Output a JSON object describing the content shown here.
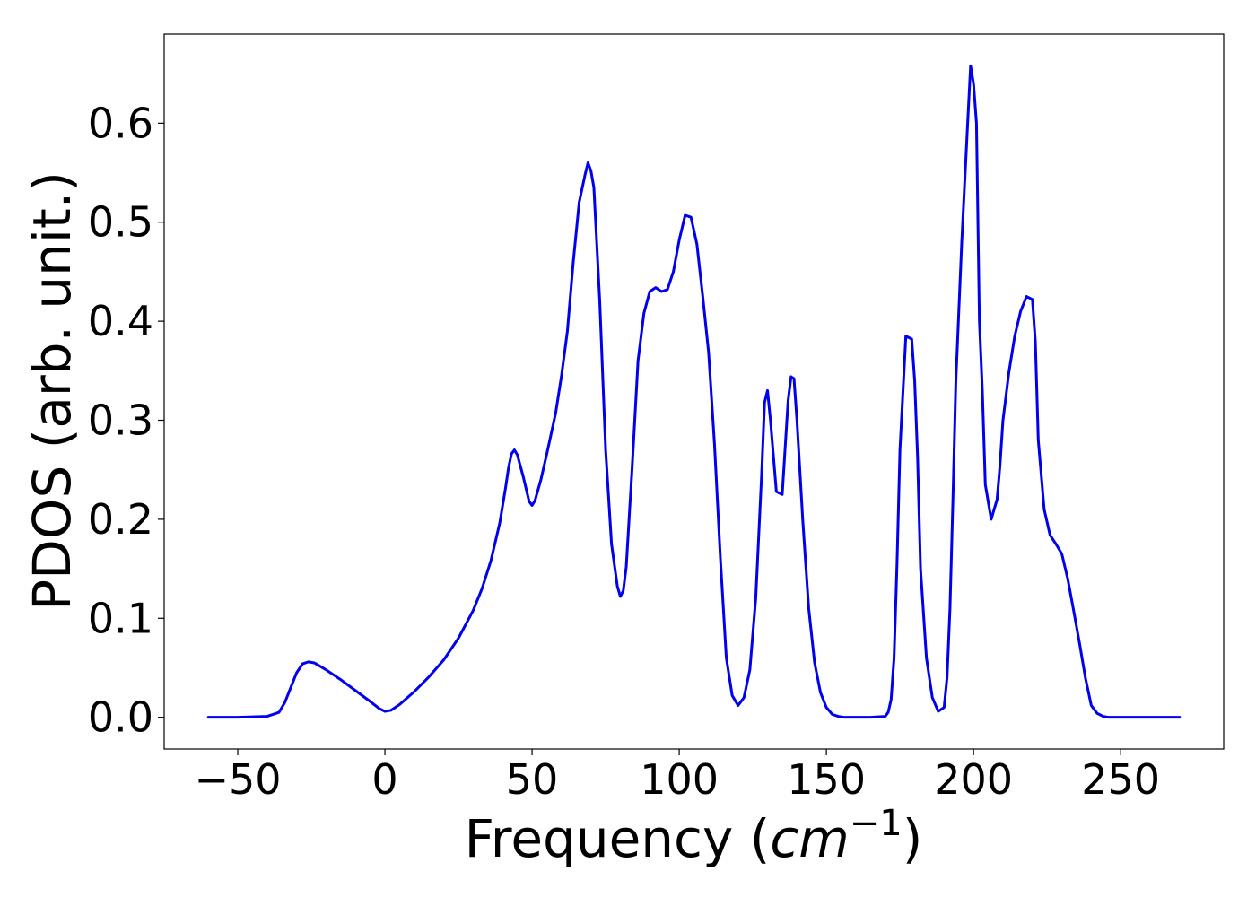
{
  "chart_data": {
    "type": "line",
    "xlabel": "Frequency",
    "xlabel_unit_open": "(",
    "xlabel_unit_base": "cm",
    "xlabel_unit_exp": "−1",
    "xlabel_unit_close": ")",
    "ylabel": "PDOS (arb. unit.)",
    "xlim": [
      -75,
      285
    ],
    "ylim": [
      -0.032,
      0.69
    ],
    "x_ticks": [
      -50,
      0,
      50,
      100,
      150,
      200,
      250
    ],
    "x_tick_labels": [
      "−50",
      "0",
      "50",
      "100",
      "150",
      "200",
      "250"
    ],
    "y_ticks": [
      0.0,
      0.1,
      0.2,
      0.3,
      0.4,
      0.5,
      0.6
    ],
    "y_tick_labels": [
      "0.0",
      "0.1",
      "0.2",
      "0.3",
      "0.4",
      "0.5",
      "0.6"
    ],
    "grid": false,
    "series": [
      {
        "color": "#0000ee",
        "x": [
          -60,
          -50,
          -40,
          -36,
          -34,
          -32,
          -30,
          -28,
          -26,
          -24,
          -20,
          -15,
          -10,
          -5,
          -2,
          0,
          2,
          5,
          10,
          15,
          20,
          25,
          30,
          33,
          36,
          39,
          41,
          42,
          43,
          44,
          45,
          47,
          49,
          50,
          51,
          53,
          55,
          58,
          60,
          62,
          64,
          66,
          68,
          69,
          70,
          71,
          73,
          75,
          77,
          79,
          80,
          81,
          82,
          84,
          86,
          88,
          90,
          92,
          94,
          96,
          98,
          100,
          102,
          104,
          106,
          108,
          110,
          112,
          114,
          116,
          118,
          120,
          122,
          124,
          126,
          128,
          129,
          130,
          131,
          133,
          135,
          137,
          138,
          139,
          140,
          142,
          144,
          146,
          148,
          150,
          152,
          154,
          156,
          160,
          165,
          170,
          171,
          172,
          173,
          174,
          175,
          177,
          179,
          180,
          181,
          182,
          184,
          186,
          188,
          190,
          191,
          192,
          193,
          194,
          196,
          198,
          199,
          200,
          201,
          202,
          203,
          204,
          206,
          208,
          209,
          210,
          212,
          214,
          216,
          218,
          220,
          221,
          222,
          224,
          226,
          228,
          230,
          232,
          234,
          236,
          238,
          240,
          242,
          244,
          246,
          248,
          250,
          255,
          260,
          270
        ],
        "y": [
          0.0,
          0.0,
          0.001,
          0.005,
          0.015,
          0.03,
          0.045,
          0.054,
          0.056,
          0.055,
          0.048,
          0.038,
          0.027,
          0.016,
          0.009,
          0.006,
          0.007,
          0.013,
          0.026,
          0.041,
          0.058,
          0.08,
          0.108,
          0.13,
          0.158,
          0.196,
          0.232,
          0.252,
          0.266,
          0.27,
          0.265,
          0.243,
          0.218,
          0.214,
          0.219,
          0.24,
          0.266,
          0.307,
          0.345,
          0.39,
          0.46,
          0.52,
          0.548,
          0.56,
          0.552,
          0.535,
          0.42,
          0.27,
          0.175,
          0.132,
          0.122,
          0.128,
          0.152,
          0.252,
          0.36,
          0.408,
          0.43,
          0.434,
          0.43,
          0.432,
          0.45,
          0.482,
          0.507,
          0.505,
          0.478,
          0.425,
          0.368,
          0.275,
          0.16,
          0.06,
          0.022,
          0.012,
          0.02,
          0.048,
          0.12,
          0.245,
          0.318,
          0.33,
          0.3,
          0.228,
          0.225,
          0.32,
          0.344,
          0.342,
          0.3,
          0.198,
          0.11,
          0.055,
          0.025,
          0.01,
          0.003,
          0.001,
          0.0,
          0.0,
          0.0,
          0.001,
          0.005,
          0.018,
          0.06,
          0.155,
          0.27,
          0.385,
          0.382,
          0.34,
          0.262,
          0.15,
          0.06,
          0.02,
          0.006,
          0.01,
          0.04,
          0.11,
          0.22,
          0.34,
          0.48,
          0.6,
          0.658,
          0.64,
          0.6,
          0.4,
          0.33,
          0.235,
          0.2,
          0.22,
          0.255,
          0.3,
          0.348,
          0.385,
          0.41,
          0.425,
          0.422,
          0.38,
          0.28,
          0.21,
          0.184,
          0.175,
          0.165,
          0.14,
          0.108,
          0.075,
          0.04,
          0.012,
          0.004,
          0.001,
          0.0,
          0.0,
          0.0,
          0.0,
          0.0,
          0.0
        ]
      }
    ]
  }
}
